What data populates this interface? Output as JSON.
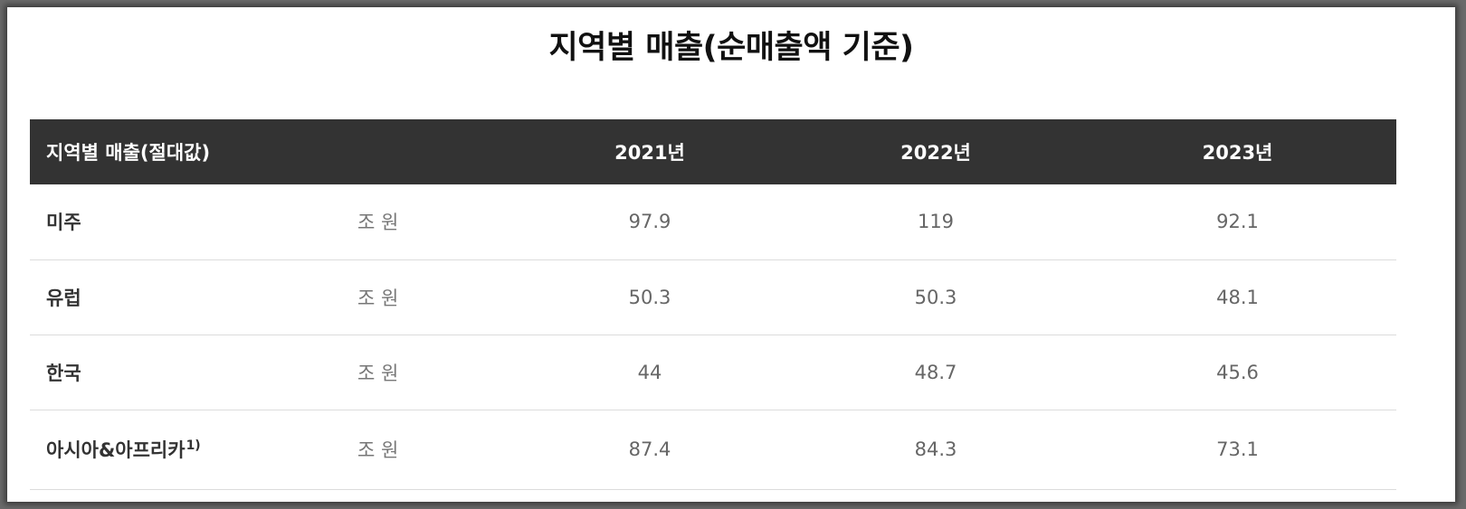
{
  "title": "지역별 매출(순매출액 기준)",
  "table": {
    "header": {
      "region": "지역별 매출(절대값)",
      "years": [
        "2021년",
        "2022년",
        "2023년"
      ]
    },
    "rows": [
      {
        "region": "미주",
        "footnote": "",
        "unit": "조 원",
        "values": [
          "97.9",
          "119",
          "92.1"
        ]
      },
      {
        "region": "유럽",
        "footnote": "",
        "unit": "조 원",
        "values": [
          "50.3",
          "50.3",
          "48.1"
        ]
      },
      {
        "region": "한국",
        "footnote": "",
        "unit": "조 원",
        "values": [
          "44",
          "48.7",
          "45.6"
        ]
      },
      {
        "region": "아시아&아프리카",
        "footnote": "1)",
        "unit": "조 원",
        "values": [
          "87.4",
          "84.3",
          "73.1"
        ]
      }
    ]
  }
}
